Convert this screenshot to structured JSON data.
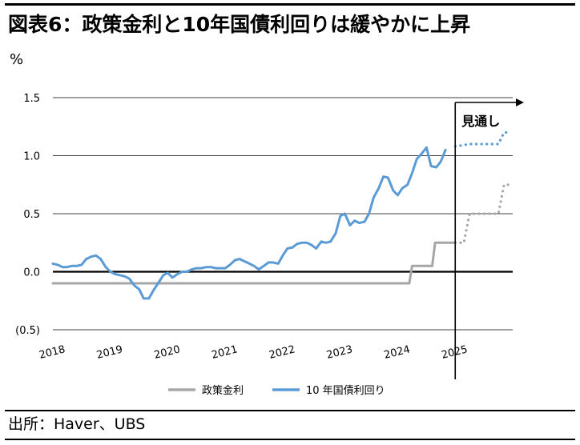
{
  "title": "図表6：政策金利と10年国債利回りは緩やかに上昇",
  "unit": "%",
  "source": "出所：Haver、UBS",
  "chart_data": {
    "type": "line",
    "title": "図表6：政策金利と10年国債利回りは緩やかに上昇",
    "ylabel": "%",
    "xlabel": "",
    "ylim": [
      -0.5,
      1.5
    ],
    "xlim": [
      2018,
      2026
    ],
    "y_ticks": [
      {
        "value": 1.5,
        "label": "1.5"
      },
      {
        "value": 1.0,
        "label": "1.0"
      },
      {
        "value": 0.5,
        "label": "0.5"
      },
      {
        "value": 0.0,
        "label": "0.0"
      },
      {
        "value": -0.5,
        "label": "(0.5)"
      }
    ],
    "x_ticks": [
      {
        "value": 2018,
        "label": "2018"
      },
      {
        "value": 2019,
        "label": "2019"
      },
      {
        "value": 2020,
        "label": "2020"
      },
      {
        "value": 2021,
        "label": "2021"
      },
      {
        "value": 2022,
        "label": "2022"
      },
      {
        "value": 2023,
        "label": "2023"
      },
      {
        "value": 2024,
        "label": "2024"
      },
      {
        "value": 2025,
        "label": "2025"
      }
    ],
    "forecast_start": 2025,
    "annotation": "見通し",
    "grid": true,
    "legend": "bottom",
    "series": [
      {
        "name": "政策金利",
        "color": "#a6a6a6",
        "actual": [
          [
            2018.0,
            -0.1
          ],
          [
            2024.2,
            -0.1
          ],
          [
            2024.25,
            0.05
          ],
          [
            2024.6,
            0.05
          ],
          [
            2024.65,
            0.25
          ],
          [
            2025.0,
            0.25
          ]
        ],
        "forecast": [
          [
            2025.0,
            0.25
          ],
          [
            2025.15,
            0.25
          ],
          [
            2025.25,
            0.5
          ],
          [
            2025.75,
            0.5
          ],
          [
            2025.85,
            0.75
          ],
          [
            2025.95,
            0.75
          ]
        ]
      },
      {
        "name": "10 年国債利回り",
        "color": "#5b9bd5",
        "actual": [
          [
            2018.0,
            0.07
          ],
          [
            2018.08,
            0.06
          ],
          [
            2018.17,
            0.04
          ],
          [
            2018.25,
            0.04
          ],
          [
            2018.33,
            0.05
          ],
          [
            2018.42,
            0.05
          ],
          [
            2018.5,
            0.06
          ],
          [
            2018.58,
            0.11
          ],
          [
            2018.67,
            0.13
          ],
          [
            2018.75,
            0.14
          ],
          [
            2018.83,
            0.11
          ],
          [
            2018.92,
            0.04
          ],
          [
            2019.0,
            0.0
          ],
          [
            2019.08,
            -0.02
          ],
          [
            2019.17,
            -0.03
          ],
          [
            2019.25,
            -0.04
          ],
          [
            2019.33,
            -0.06
          ],
          [
            2019.42,
            -0.12
          ],
          [
            2019.5,
            -0.15
          ],
          [
            2019.58,
            -0.23
          ],
          [
            2019.67,
            -0.23
          ],
          [
            2019.75,
            -0.16
          ],
          [
            2019.83,
            -0.1
          ],
          [
            2019.92,
            -0.03
          ],
          [
            2020.0,
            -0.01
          ],
          [
            2020.08,
            -0.05
          ],
          [
            2020.17,
            -0.02
          ],
          [
            2020.25,
            0.0
          ],
          [
            2020.33,
            0.0
          ],
          [
            2020.42,
            0.02
          ],
          [
            2020.5,
            0.03
          ],
          [
            2020.58,
            0.03
          ],
          [
            2020.67,
            0.04
          ],
          [
            2020.75,
            0.04
          ],
          [
            2020.83,
            0.03
          ],
          [
            2020.92,
            0.03
          ],
          [
            2021.0,
            0.03
          ],
          [
            2021.08,
            0.06
          ],
          [
            2021.17,
            0.1
          ],
          [
            2021.25,
            0.11
          ],
          [
            2021.33,
            0.09
          ],
          [
            2021.42,
            0.07
          ],
          [
            2021.5,
            0.05
          ],
          [
            2021.58,
            0.02
          ],
          [
            2021.67,
            0.05
          ],
          [
            2021.75,
            0.08
          ],
          [
            2021.83,
            0.08
          ],
          [
            2021.92,
            0.07
          ],
          [
            2022.0,
            0.14
          ],
          [
            2022.08,
            0.2
          ],
          [
            2022.17,
            0.21
          ],
          [
            2022.25,
            0.24
          ],
          [
            2022.33,
            0.25
          ],
          [
            2022.42,
            0.25
          ],
          [
            2022.5,
            0.23
          ],
          [
            2022.58,
            0.2
          ],
          [
            2022.67,
            0.26
          ],
          [
            2022.75,
            0.25
          ],
          [
            2022.83,
            0.26
          ],
          [
            2022.92,
            0.33
          ],
          [
            2023.0,
            0.48
          ],
          [
            2023.08,
            0.5
          ],
          [
            2023.17,
            0.4
          ],
          [
            2023.25,
            0.44
          ],
          [
            2023.33,
            0.42
          ],
          [
            2023.42,
            0.43
          ],
          [
            2023.5,
            0.5
          ],
          [
            2023.58,
            0.64
          ],
          [
            2023.67,
            0.72
          ],
          [
            2023.75,
            0.82
          ],
          [
            2023.83,
            0.81
          ],
          [
            2023.92,
            0.7
          ],
          [
            2024.0,
            0.66
          ],
          [
            2024.08,
            0.72
          ],
          [
            2024.17,
            0.75
          ],
          [
            2024.25,
            0.85
          ],
          [
            2024.33,
            0.97
          ],
          [
            2024.42,
            1.02
          ],
          [
            2024.5,
            1.07
          ],
          [
            2024.58,
            0.91
          ],
          [
            2024.67,
            0.9
          ],
          [
            2024.75,
            0.95
          ],
          [
            2024.83,
            1.05
          ]
        ],
        "forecast": [
          [
            2025.0,
            1.08
          ],
          [
            2025.25,
            1.1
          ],
          [
            2025.5,
            1.1
          ],
          [
            2025.75,
            1.1
          ],
          [
            2025.85,
            1.2
          ],
          [
            2025.95,
            1.2
          ]
        ]
      }
    ]
  }
}
